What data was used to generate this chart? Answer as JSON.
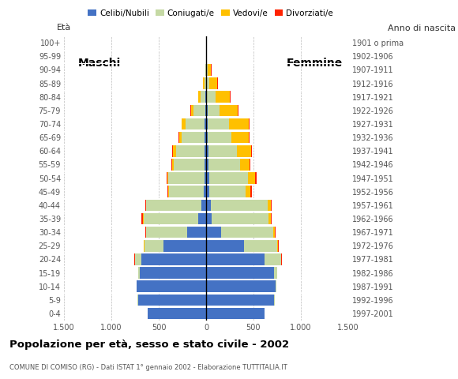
{
  "age_groups": [
    "0-4",
    "5-9",
    "10-14",
    "15-19",
    "20-24",
    "25-29",
    "30-34",
    "35-39",
    "40-44",
    "45-49",
    "50-54",
    "55-59",
    "60-64",
    "65-69",
    "70-74",
    "75-79",
    "80-84",
    "85-89",
    "90-94",
    "95-99",
    "100+"
  ],
  "birth_years": [
    "1997-2001",
    "1992-1996",
    "1987-1991",
    "1982-1986",
    "1977-1981",
    "1972-1976",
    "1967-1971",
    "1962-1966",
    "1957-1961",
    "1952-1956",
    "1947-1951",
    "1942-1946",
    "1937-1941",
    "1932-1936",
    "1927-1931",
    "1922-1926",
    "1917-1921",
    "1912-1916",
    "1907-1911",
    "1902-1906",
    "1901 o prima"
  ],
  "males": {
    "celibe": [
      620,
      720,
      730,
      700,
      680,
      450,
      200,
      80,
      50,
      25,
      20,
      20,
      20,
      15,
      15,
      10,
      5,
      0,
      0,
      0,
      0
    ],
    "coniugato": [
      0,
      2,
      5,
      15,
      70,
      200,
      430,
      580,
      580,
      370,
      380,
      320,
      300,
      240,
      200,
      120,
      50,
      15,
      5,
      0,
      0
    ],
    "vedovo": [
      0,
      0,
      0,
      0,
      5,
      5,
      5,
      5,
      5,
      5,
      10,
      20,
      30,
      30,
      40,
      30,
      30,
      15,
      5,
      0,
      0
    ],
    "divorziato": [
      0,
      0,
      0,
      0,
      5,
      5,
      5,
      15,
      10,
      10,
      5,
      10,
      10,
      10,
      5,
      5,
      0,
      0,
      0,
      0,
      0
    ]
  },
  "females": {
    "nubile": [
      620,
      720,
      730,
      720,
      620,
      400,
      160,
      60,
      50,
      30,
      30,
      25,
      25,
      20,
      20,
      15,
      10,
      5,
      5,
      0,
      0
    ],
    "coniugata": [
      0,
      2,
      10,
      30,
      170,
      350,
      550,
      600,
      600,
      390,
      410,
      330,
      300,
      250,
      220,
      130,
      90,
      30,
      15,
      0,
      0
    ],
    "vedova": [
      0,
      0,
      0,
      2,
      5,
      10,
      15,
      25,
      30,
      50,
      80,
      100,
      150,
      180,
      210,
      190,
      150,
      80,
      30,
      5,
      0
    ],
    "divorziata": [
      0,
      0,
      0,
      0,
      5,
      5,
      5,
      10,
      15,
      10,
      10,
      10,
      10,
      10,
      10,
      5,
      5,
      10,
      5,
      0,
      0
    ]
  },
  "colors": {
    "celibe": "#4472C4",
    "coniugato": "#C5D9A4",
    "vedovo": "#FFC000",
    "divorziato": "#FF2200"
  },
  "xlim": 1500,
  "title": "Popolazione per età, sesso e stato civile - 2002",
  "subtitle": "COMUNE DI COMISO (RG) - Dati ISTAT 1° gennaio 2002 - Elaborazione TUTTITALIA.IT",
  "label_eta": "Età",
  "label_anno": "Anno di nascita",
  "label_maschi": "Maschi",
  "label_femmine": "Femmine",
  "legend_labels": [
    "Celibi/Nubili",
    "Coniugati/e",
    "Vedovi/e",
    "Divorziati/e"
  ],
  "xtick_vals": [
    -1500,
    -1000,
    -500,
    0,
    500,
    1000,
    1500
  ],
  "xtick_labels": [
    "1.500",
    "1.000",
    "500",
    "0",
    "500",
    "1.000",
    "1.500"
  ],
  "background_color": "#ffffff"
}
